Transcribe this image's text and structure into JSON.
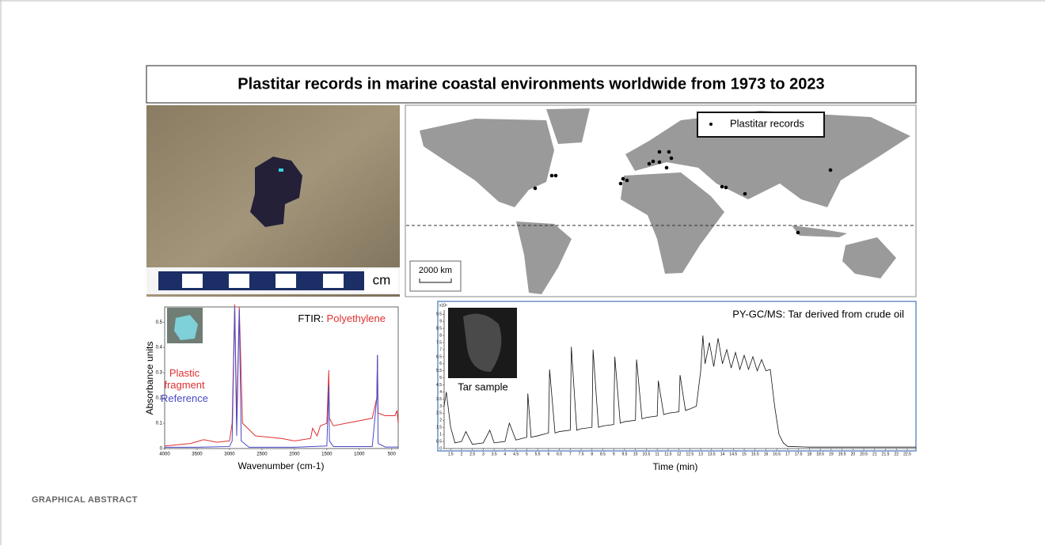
{
  "title": "Plastitar records in marine coastal environments worldwide from 1973 to 2023",
  "photo": {
    "scale_label": "cm"
  },
  "map": {
    "legend": "Plastitar records",
    "scale_label": "2000 km"
  },
  "ftir": {
    "type": "line",
    "title_prefix": "FTIR:",
    "title_material": "Polyethylene",
    "y_label": "Absorbance units",
    "x_label": "Wavenumber (cm-1)",
    "xlim": [
      4000,
      400
    ],
    "ylim": [
      0,
      0.56
    ],
    "xticks": [
      4000,
      3500,
      3000,
      2500,
      2000,
      1500,
      1000,
      500
    ],
    "yticks": [
      0,
      0.1,
      0.2,
      0.3,
      0.4,
      0.5
    ],
    "series": [
      {
        "name": "Plastic fragment",
        "color": "#e03030",
        "x": [
          4000,
          3600,
          3400,
          3200,
          3000,
          2960,
          2920,
          2890,
          2850,
          2800,
          2600,
          2200,
          2000,
          1750,
          1720,
          1650,
          1600,
          1500,
          1470,
          1460,
          1400,
          1200,
          1000,
          800,
          730,
          720,
          710,
          600,
          450,
          420,
          400
        ],
        "values": [
          0.01,
          0.02,
          0.035,
          0.025,
          0.03,
          0.1,
          0.57,
          0.12,
          0.56,
          0.1,
          0.05,
          0.04,
          0.03,
          0.04,
          0.08,
          0.05,
          0.09,
          0.1,
          0.31,
          0.12,
          0.09,
          0.1,
          0.11,
          0.12,
          0.2,
          0.37,
          0.14,
          0.13,
          0.13,
          0.15,
          0.1
        ]
      },
      {
        "name": "Reference",
        "color": "#4a4ac8",
        "x": [
          4000,
          3500,
          3000,
          2960,
          2920,
          2890,
          2850,
          2820,
          2700,
          2000,
          1500,
          1470,
          1460,
          1400,
          800,
          730,
          720,
          710,
          600,
          400
        ],
        "values": [
          0.005,
          0.005,
          0.008,
          0.03,
          0.56,
          0.05,
          0.55,
          0.03,
          0.005,
          0.005,
          0.01,
          0.25,
          0.03,
          0.008,
          0.008,
          0.2,
          0.37,
          0.02,
          0.006,
          0.006
        ]
      }
    ]
  },
  "gcms": {
    "type": "line",
    "title": "PY-GC/MS: Tar derived from crude oil",
    "inset_label": "Tar sample",
    "x_label": "Time (min)",
    "y_multiplier": "x10⁶",
    "xlim": [
      1.2,
      22.9
    ],
    "ylim": [
      0,
      9.8
    ],
    "xticks": [
      1.5,
      2,
      2.5,
      3,
      3.5,
      4,
      4.5,
      5,
      5.5,
      6,
      6.5,
      7,
      7.5,
      8,
      8.5,
      9,
      9.5,
      10,
      10.5,
      11,
      11.5,
      12,
      12.5,
      13,
      13.5,
      14,
      14.5,
      15,
      15.5,
      16,
      16.5,
      17,
      17.5,
      18,
      18.5,
      19,
      19.5,
      20,
      20.5,
      21,
      21.5,
      22,
      22.5
    ],
    "yticks": [
      0,
      0.5,
      1,
      1.5,
      2,
      2.5,
      3,
      3.5,
      4,
      4.5,
      5,
      5.5,
      6,
      6.5,
      7,
      7.5,
      8,
      8.5,
      9,
      9.5
    ],
    "series": [
      {
        "color": "#111111",
        "x": [
          1.2,
          1.3,
          1.5,
          1.7,
          2,
          2.2,
          2.5,
          3,
          3.3,
          3.5,
          4,
          4.2,
          4.5,
          5,
          5.05,
          5.2,
          5.5,
          6,
          6.05,
          6.3,
          6.5,
          7,
          7.05,
          7.3,
          7.5,
          8,
          8.05,
          8.3,
          8.5,
          9,
          9.05,
          9.3,
          9.5,
          10,
          10.05,
          10.3,
          10.5,
          11,
          11.05,
          11.3,
          11.5,
          12,
          12.05,
          12.3,
          12.5,
          12.8,
          13,
          13.1,
          13.2,
          13.4,
          13.6,
          13.8,
          14,
          14.2,
          14.4,
          14.6,
          14.8,
          15,
          15.2,
          15.4,
          15.6,
          15.8,
          16,
          16.2,
          16.4,
          16.6,
          16.8,
          17,
          18,
          20,
          22.9
        ],
        "values": [
          3,
          4,
          1.5,
          0.4,
          0.5,
          1.2,
          0.3,
          0.4,
          1.3,
          0.4,
          0.5,
          1.8,
          0.6,
          0.8,
          3.9,
          0.8,
          0.9,
          1.1,
          5.6,
          1.1,
          1.2,
          1.3,
          7.2,
          1.3,
          1.4,
          1.5,
          7,
          1.5,
          1.6,
          1.7,
          6.5,
          1.8,
          1.9,
          2,
          6.3,
          2.1,
          2.2,
          2.3,
          4.8,
          2.4,
          2.5,
          2.6,
          5.2,
          2.7,
          2.8,
          3,
          5.5,
          8,
          6,
          7.5,
          5.8,
          7.8,
          6,
          7,
          5.7,
          6.8,
          5.6,
          6.6,
          5.6,
          6.5,
          5.5,
          6.3,
          5.5,
          5.6,
          3,
          1,
          0.4,
          0.15,
          0.1,
          0.1,
          0.1
        ]
      }
    ]
  },
  "footer": "GRAPHICAL ABSTRACT"
}
